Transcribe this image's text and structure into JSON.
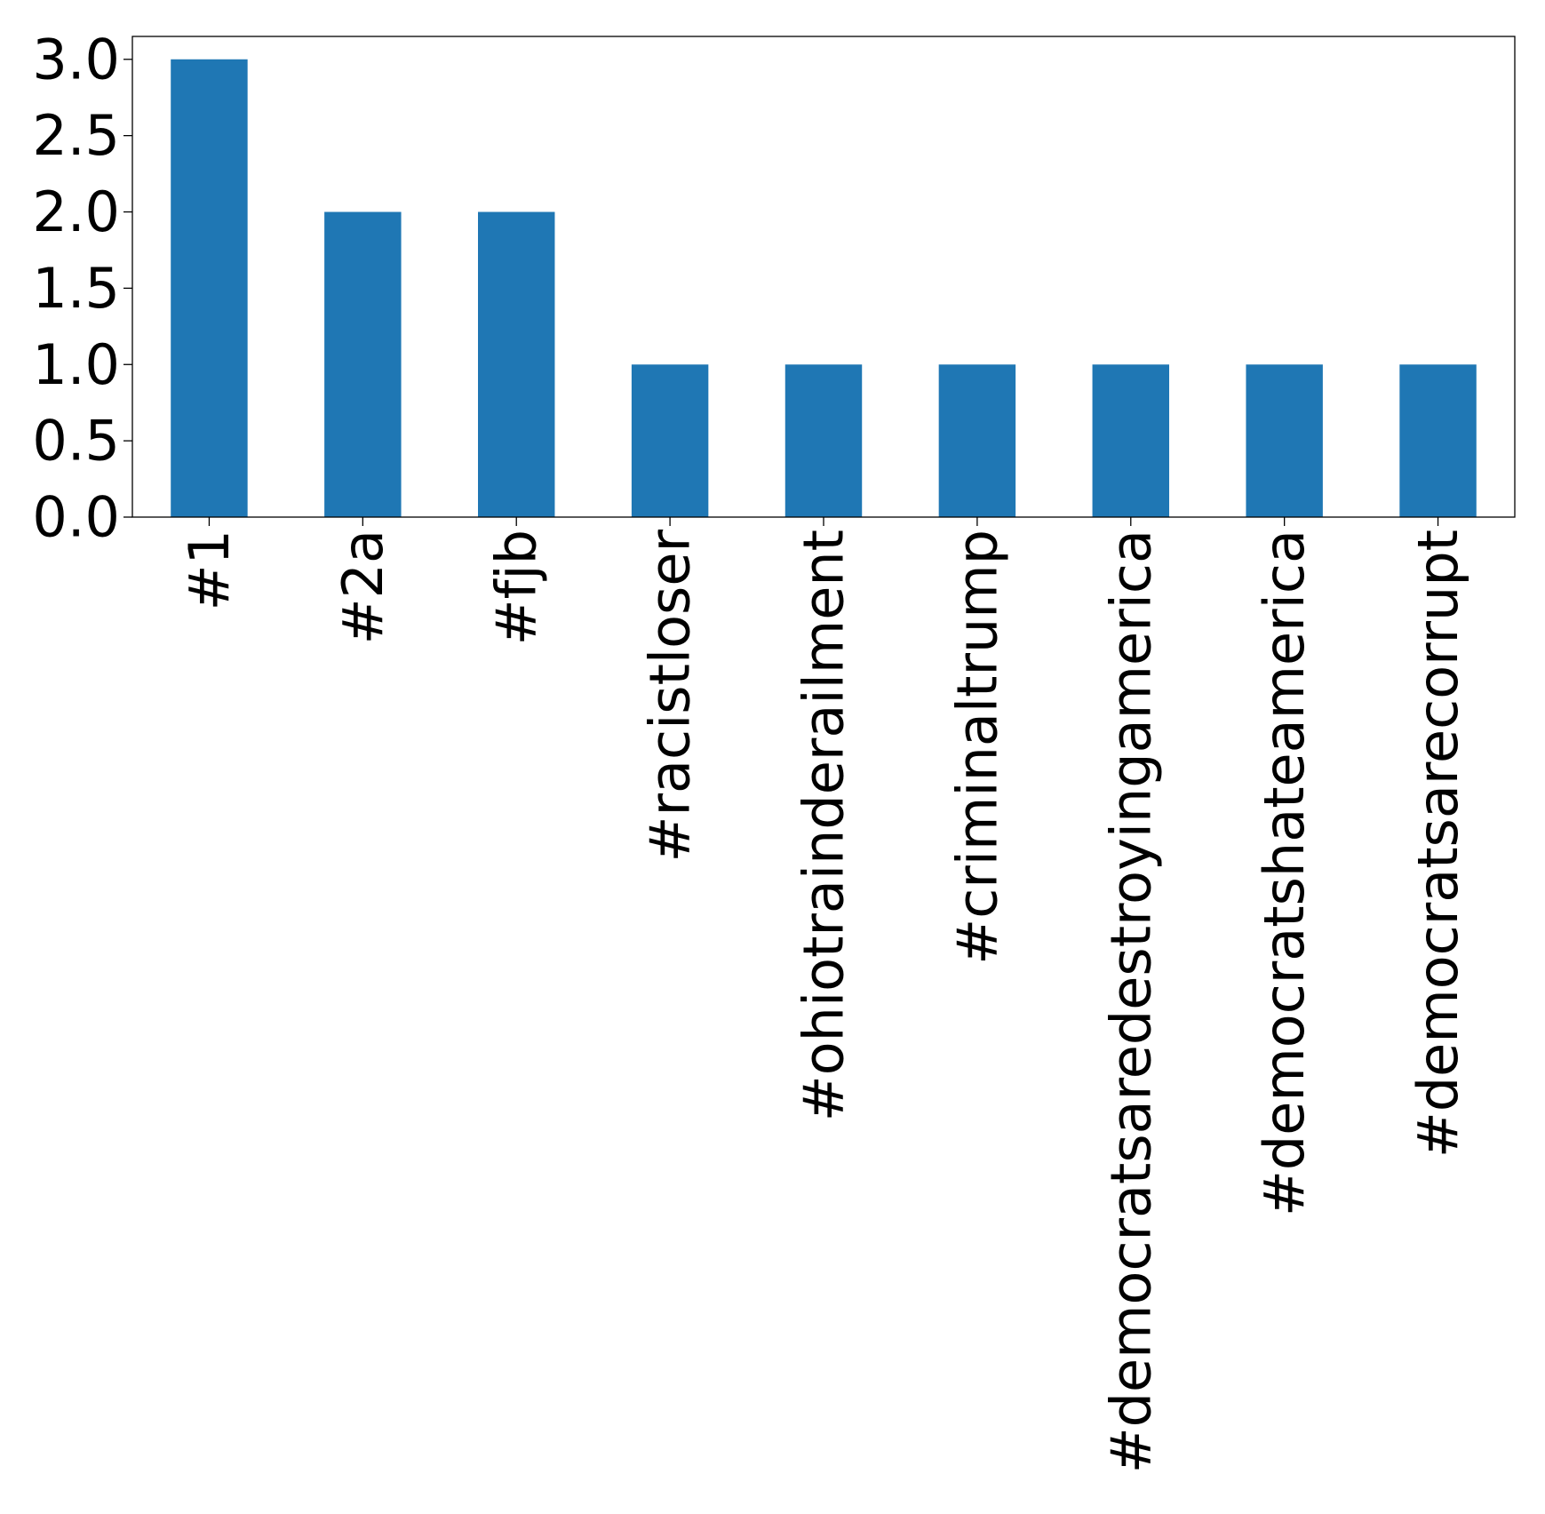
{
  "chart_data": {
    "type": "bar",
    "title": "",
    "xlabel": "",
    "ylabel": "",
    "categories": [
      "#1",
      "#2a",
      "#fjb",
      "#racistloser",
      "#ohiotrainderailment",
      "#criminaltrump",
      "#democratsaredestroyingamerica",
      "#democratshateamerica",
      "#democratsarecorrupt"
    ],
    "values": [
      3,
      2,
      2,
      1,
      1,
      1,
      1,
      1,
      1
    ],
    "ylim": [
      0,
      3.15
    ],
    "yticks": [
      "0.0",
      "0.5",
      "1.0",
      "1.5",
      "2.0",
      "2.5",
      "3.0"
    ],
    "bar_color": "#1f77b4",
    "grid": false,
    "legend": "none"
  }
}
